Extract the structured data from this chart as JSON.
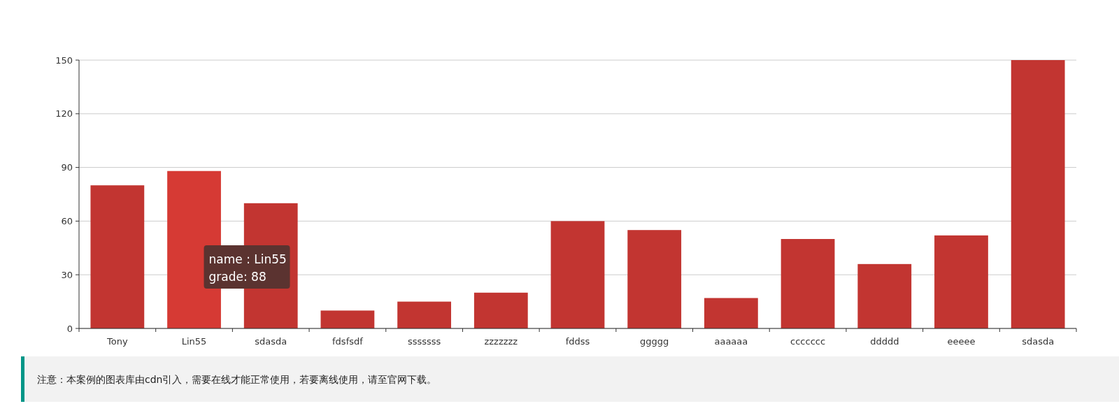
{
  "chart_data": {
    "type": "bar",
    "categories": [
      "Tony",
      "Lin55",
      "sdasda",
      "fdsfsdf",
      "sssssss",
      "zzzzzzz",
      "fddss",
      "ggggg",
      "aaaaaa",
      "ccccccc",
      "ddddd",
      "eeeee",
      "sdasda"
    ],
    "values": [
      80,
      88,
      70,
      10,
      15,
      20,
      60,
      55,
      17,
      50,
      36,
      52,
      150
    ],
    "colors": [
      "#c23531",
      "#d63a34",
      "#c23531",
      "#c23531",
      "#c23531",
      "#c23531",
      "#c23531",
      "#c23531",
      "#c23531",
      "#c23531",
      "#c23531",
      "#c23531",
      "#c23531"
    ],
    "ylim": [
      0,
      150
    ],
    "yticks": [
      0,
      30,
      60,
      90,
      120,
      150
    ],
    "grid": "y",
    "annotations": [
      "name : Lin55",
      "grade: 88",
      "注意：本案例的图表库由cdn引入，需要在线才能正常使用，若要离线使用，请至官网下载。"
    ]
  }
}
